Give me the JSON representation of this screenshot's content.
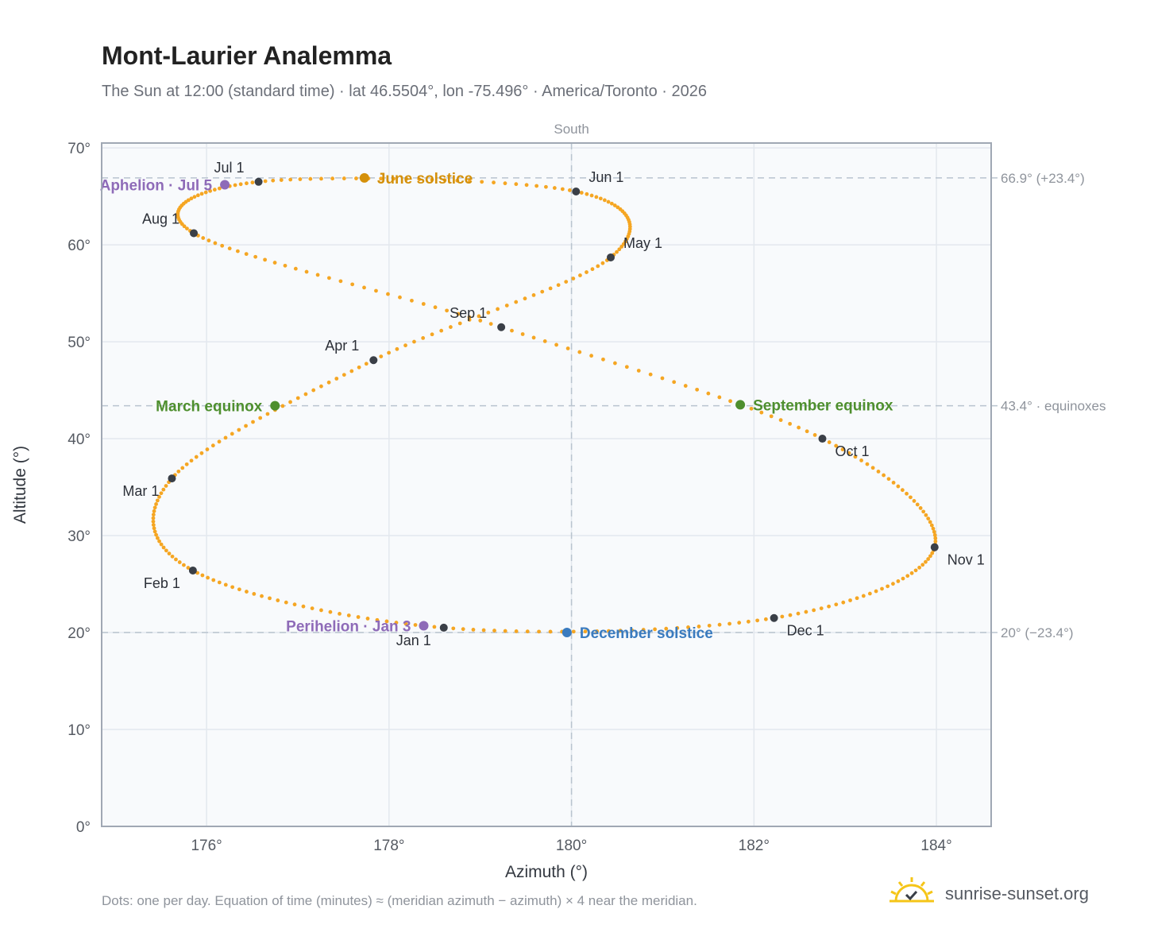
{
  "header": {
    "title": "Mont-Laurier Analemma",
    "subtitle": "The Sun at 12:00 (standard time) · lat 46.5504°, lon -75.496° · America/Toronto · 2026"
  },
  "footer": {
    "footnote": "Dots: one per day. Equation of time (minutes) ≈ (meridian azimuth − azimuth) × 4 near the meridian.",
    "brand": "sunrise-sunset.org",
    "brand_icon": "sun-logo-icon"
  },
  "colors": {
    "path": "#f5a623",
    "month_marker": "#3a3f47",
    "solstice_june": "#d4900a",
    "solstice_december": "#3a7bbf",
    "equinox": "#4e8f2e",
    "apsis": "#8e6bb8",
    "plot_bg": "#f8fafc",
    "grid": "#e3e8ee",
    "axis": "#a0a8b4",
    "reference": "#b9c4cf"
  },
  "chart_data": {
    "type": "scatter",
    "xlabel": "Azimuth (°)",
    "ylabel": "Altitude (°)",
    "xlim": [
      174.85,
      184.6
    ],
    "ylim": [
      0,
      70.5
    ],
    "x_ticks": [
      176,
      178,
      180,
      182,
      184
    ],
    "x_tick_labels": [
      "176°",
      "178°",
      "180°",
      "182°",
      "184°"
    ],
    "y_ticks": [
      0,
      10,
      20,
      30,
      40,
      50,
      60,
      70
    ],
    "y_tick_labels": [
      "0°",
      "10°",
      "20°",
      "30°",
      "40°",
      "50°",
      "60°",
      "70°"
    ],
    "grid": true,
    "meridian": {
      "azimuth": 180,
      "label": "South"
    },
    "reference_lines": [
      {
        "altitude": 66.9,
        "label": "66.9° (+23.4°)"
      },
      {
        "altitude": 43.4,
        "label": "43.4° · equinoxes"
      },
      {
        "altitude": 20,
        "label": "20° (−23.4°)"
      }
    ],
    "path_series": {
      "note_points_per_day": 365,
      "anchors": [
        {
          "date": "Jan 1",
          "azimuth": 178.6,
          "altitude": 20.5
        },
        {
          "date": "Feb 1",
          "azimuth": 175.85,
          "altitude": 26.4
        },
        {
          "date": "Mar 1",
          "azimuth": 175.62,
          "altitude": 35.9
        },
        {
          "date": "Apr 1",
          "azimuth": 177.83,
          "altitude": 48.1
        },
        {
          "date": "May 1",
          "azimuth": 180.43,
          "altitude": 58.7
        },
        {
          "date": "Jun 1",
          "azimuth": 180.05,
          "altitude": 65.5
        },
        {
          "date": "Jul 1",
          "azimuth": 176.57,
          "altitude": 66.5
        },
        {
          "date": "Aug 1",
          "azimuth": 175.86,
          "altitude": 61.2
        },
        {
          "date": "Sep 1",
          "azimuth": 179.23,
          "altitude": 51.5
        },
        {
          "date": "Oct 1",
          "azimuth": 182.75,
          "altitude": 40.0
        },
        {
          "date": "Nov 1",
          "azimuth": 183.98,
          "altitude": 28.8
        },
        {
          "date": "Dec 1",
          "azimuth": 182.22,
          "altitude": 21.5
        }
      ]
    },
    "month_markers": [
      {
        "label": "Jan 1",
        "azimuth": 178.6,
        "altitude": 20.5,
        "label_pos": "below-left"
      },
      {
        "label": "Feb 1",
        "azimuth": 175.85,
        "altitude": 26.4,
        "label_pos": "below-left"
      },
      {
        "label": "Mar 1",
        "azimuth": 175.62,
        "altitude": 35.9,
        "label_pos": "below-left"
      },
      {
        "label": "Apr 1",
        "azimuth": 177.83,
        "altitude": 48.1,
        "label_pos": "above-left"
      },
      {
        "label": "May 1",
        "azimuth": 180.43,
        "altitude": 58.7,
        "label_pos": "above-right"
      },
      {
        "label": "Jun 1",
        "azimuth": 180.05,
        "altitude": 65.5,
        "label_pos": "above-right"
      },
      {
        "label": "Jul 1",
        "azimuth": 176.57,
        "altitude": 66.5,
        "label_pos": "above-left"
      },
      {
        "label": "Aug 1",
        "azimuth": 175.86,
        "altitude": 61.2,
        "label_pos": "above-left"
      },
      {
        "label": "Sep 1",
        "azimuth": 179.23,
        "altitude": 51.5,
        "label_pos": "above-left"
      },
      {
        "label": "Oct 1",
        "azimuth": 182.75,
        "altitude": 40.0,
        "label_pos": "below-right"
      },
      {
        "label": "Nov 1",
        "azimuth": 183.98,
        "altitude": 28.8,
        "label_pos": "below-right"
      },
      {
        "label": "Dec 1",
        "azimuth": 182.22,
        "altitude": 21.5,
        "label_pos": "below-right"
      }
    ],
    "special_events": [
      {
        "label": "June solstice",
        "azimuth": 177.73,
        "altitude": 66.9,
        "kind": "solstice_june",
        "label_side": "right"
      },
      {
        "label": "December solstice",
        "azimuth": 179.95,
        "altitude": 20.0,
        "kind": "solstice_december",
        "label_side": "right"
      },
      {
        "label": "March equinox",
        "azimuth": 176.75,
        "altitude": 43.4,
        "kind": "equinox",
        "label_side": "left"
      },
      {
        "label": "September equinox",
        "azimuth": 181.85,
        "altitude": 43.5,
        "kind": "equinox",
        "label_side": "right"
      },
      {
        "label": "Aphelion · Jul 5",
        "azimuth": 176.2,
        "altitude": 66.2,
        "kind": "apsis",
        "label_side": "left"
      },
      {
        "label": "Perihelion · Jan 3",
        "azimuth": 178.38,
        "altitude": 20.7,
        "kind": "apsis",
        "label_side": "left"
      }
    ]
  }
}
